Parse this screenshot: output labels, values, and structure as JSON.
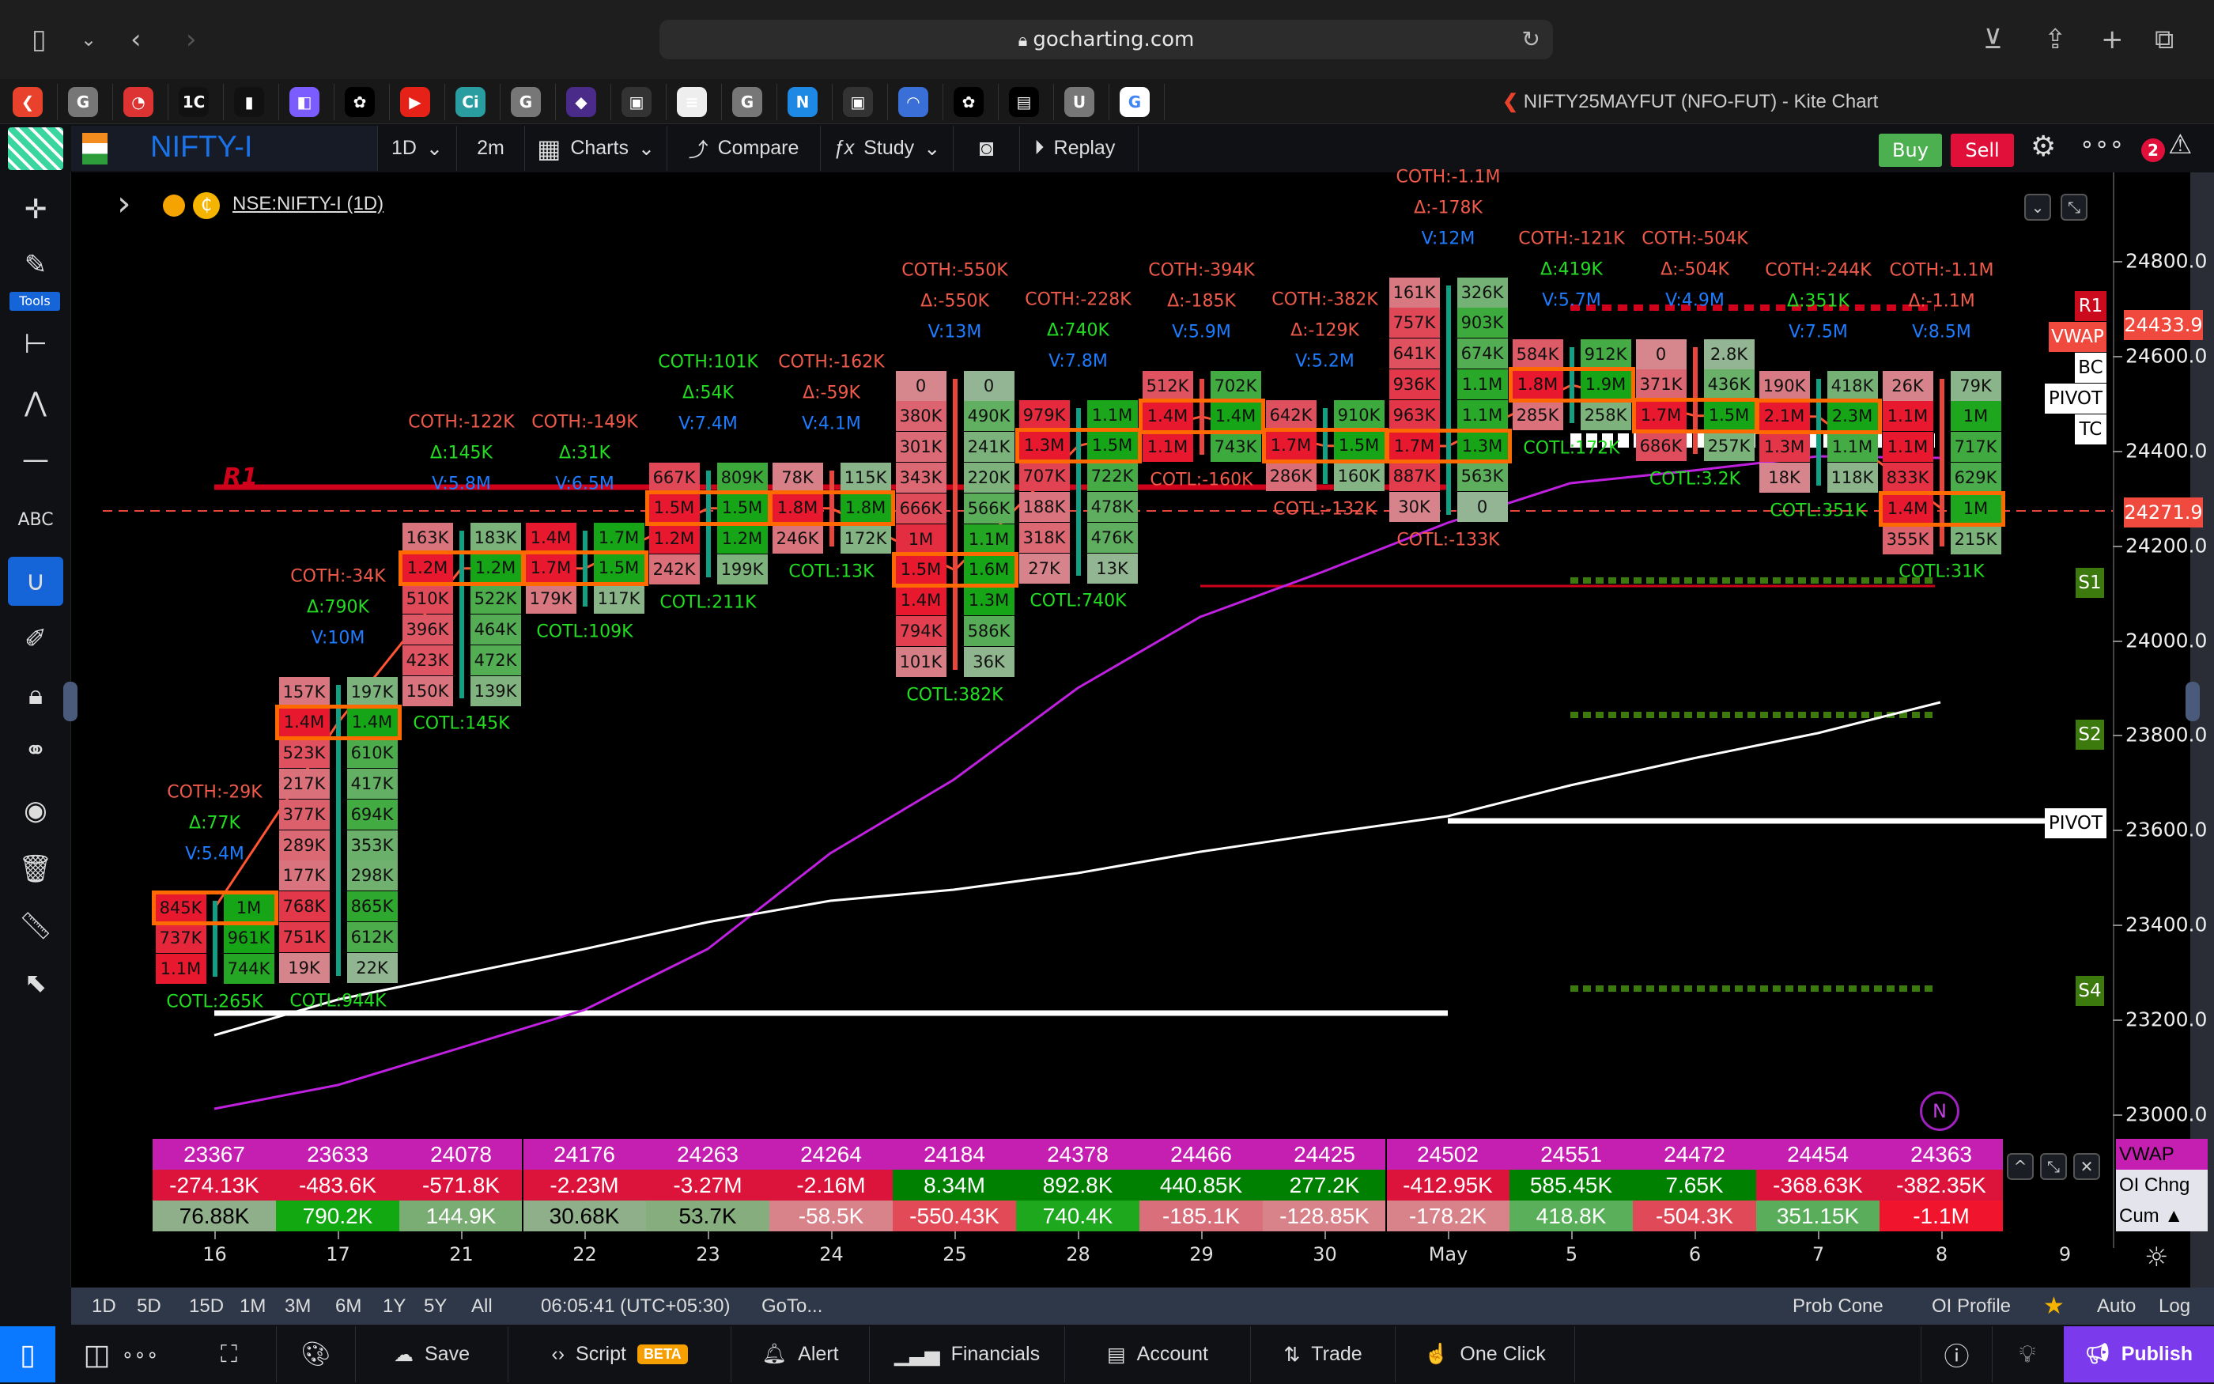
{
  "browser": {
    "url": "gocharting.com",
    "tab_title": "NIFTY25MAYFUT (NFO-FUT) - Kite Chart"
  },
  "tab_icons": [
    {
      "icon": "kite-icon",
      "glyph": "❮",
      "color": "#e8412c"
    },
    {
      "icon": "g-icon",
      "glyph": "G",
      "color": "#777"
    },
    {
      "icon": "speed-icon",
      "glyph": "◔",
      "color": "#d33"
    },
    {
      "icon": "1c-icon",
      "glyph": "1C",
      "color": "#111"
    },
    {
      "icon": "analytics-icon",
      "glyph": "▮",
      "color": "#111"
    },
    {
      "icon": "linear-icon",
      "glyph": "◧",
      "color": "#7b5cff"
    },
    {
      "icon": "openai-icon",
      "glyph": "✿",
      "color": "#000"
    },
    {
      "icon": "youtube-icon",
      "glyph": "▶",
      "color": "#e62117"
    },
    {
      "icon": "ci-icon",
      "glyph": "Ci",
      "color": "#2a9da0"
    },
    {
      "icon": "g-icon",
      "glyph": "G",
      "color": "#777"
    },
    {
      "icon": "art-icon",
      "glyph": "◆",
      "color": "#4a2b8a"
    },
    {
      "icon": "store-icon",
      "glyph": "▣",
      "color": "#333"
    },
    {
      "icon": "news-icon",
      "glyph": "≡",
      "color": "#eee"
    },
    {
      "icon": "g-icon",
      "glyph": "G",
      "color": "#777"
    },
    {
      "icon": "n-icon",
      "glyph": "N",
      "color": "#1e88e5"
    },
    {
      "icon": "store-icon",
      "glyph": "▣",
      "color": "#333"
    },
    {
      "icon": "rainbow-icon",
      "glyph": "◠",
      "color": "#3b6fd8"
    },
    {
      "icon": "openai-icon",
      "glyph": "✿",
      "color": "#000"
    },
    {
      "icon": "doc-icon",
      "glyph": "▤",
      "color": "#000"
    },
    {
      "icon": "u-icon",
      "glyph": "U",
      "color": "#777"
    },
    {
      "icon": "google-icon",
      "glyph": "G",
      "color": "#fff"
    }
  ],
  "toolbar": {
    "symbol": "NIFTY-I",
    "interval": "1D",
    "timeframe": "2m",
    "charts": "Charts",
    "compare": "Compare",
    "study": "Study",
    "replay": "Replay",
    "buy": "Buy",
    "sell": "Sell",
    "badge": "2"
  },
  "left_tools": {
    "tools_label": "Tools"
  },
  "chart_header": {
    "symbol": "NSE:NIFTY-I (1D)"
  },
  "colors": {
    "bid_strong": "#e8192f",
    "bid_weak": "#d6868d",
    "ask_strong": "#16a516",
    "ask_weak": "#93b593",
    "poc_border": "#ff6a00",
    "vwap": "#c41fb0",
    "oi_negative": "#dc143c",
    "oi_positive": "#008000",
    "volume_label": "#1e7cff",
    "publish": "#7c3aed"
  },
  "price_axis": {
    "ticks": [
      "24800.0",
      "24600.0",
      "24400.0",
      "24200.0",
      "24000.0",
      "23800.0",
      "23600.0",
      "23400.0",
      "23200.0",
      "23000.0"
    ],
    "vwap_price": "24433.9",
    "last_price": "24271.9"
  },
  "levels": {
    "r1": "R1",
    "vwap": "VWAP",
    "bc": "BC",
    "pivot": "PIVOT",
    "tc": "TC",
    "s1": "S1",
    "s2": "S2",
    "s4": "S4",
    "pivot2": "PIVOT",
    "r1_chart": "R1"
  },
  "candles": [
    {
      "date": "16",
      "dir": "up",
      "coth": "COTH:-29K",
      "delta": "Δ:77K",
      "vol": "V:5.4M",
      "cotl": "COTL:265K",
      "poc": 0,
      "bid": [
        "845K",
        "737K",
        "1.1M"
      ],
      "ask": [
        "1M",
        "961K",
        "744K"
      ]
    },
    {
      "date": "17",
      "dir": "up",
      "coth": "COTH:-34K",
      "delta": "Δ:790K",
      "vol": "V:10M",
      "cotl": "COTL:944K",
      "poc": 1,
      "bid": [
        "157K",
        "1.4M",
        "523K",
        "217K",
        "377K",
        "289K",
        "177K",
        "768K",
        "751K",
        "19K"
      ],
      "ask": [
        "197K",
        "1.4M",
        "610K",
        "417K",
        "694K",
        "353K",
        "298K",
        "865K",
        "612K",
        "22K"
      ]
    },
    {
      "date": "21",
      "dir": "up",
      "coth": "COTH:-122K",
      "delta": "Δ:145K",
      "vol": "V:5.8M",
      "cotl": "COTL:145K",
      "poc": 1,
      "bid": [
        "163K",
        "1.2M",
        "510K",
        "396K",
        "423K",
        "150K"
      ],
      "ask": [
        "183K",
        "1.2M",
        "522K",
        "464K",
        "472K",
        "139K"
      ]
    },
    {
      "date": "22",
      "dir": "up",
      "coth": "COTH:-149K",
      "delta": "Δ:31K",
      "vol": "V:6.5M",
      "cotl": "COTL:109K",
      "poc": 1,
      "bid": [
        "1.4M",
        "1.7M",
        "179K"
      ],
      "ask": [
        "1.7M",
        "1.5M",
        "117K"
      ]
    },
    {
      "date": "23",
      "dir": "up",
      "coth": "COTH:101K",
      "delta": "Δ:54K",
      "vol": "V:7.4M",
      "cotl": "COTL:211K",
      "poc": 1,
      "bid": [
        "667K",
        "1.5M",
        "1.2M",
        "242K"
      ],
      "ask": [
        "809K",
        "1.5M",
        "1.2M",
        "199K"
      ]
    },
    {
      "date": "24",
      "dir": "down",
      "coth": "COTH:-162K",
      "delta": "Δ:-59K",
      "vol": "V:4.1M",
      "cotl": "COTL:13K",
      "poc": 1,
      "bid": [
        "78K",
        "1.8M",
        "246K"
      ],
      "ask": [
        "115K",
        "1.8M",
        "172K"
      ]
    },
    {
      "date": "25",
      "dir": "down",
      "coth": "COTH:-550K",
      "delta": "Δ:-550K",
      "vol": "V:13M",
      "cotl": "COTL:382K",
      "poc": 6,
      "bid": [
        "0",
        "380K",
        "301K",
        "343K",
        "666K",
        "1M",
        "1.5M",
        "1.4M",
        "794K",
        "101K"
      ],
      "ask": [
        "0",
        "490K",
        "241K",
        "220K",
        "566K",
        "1.1M",
        "1.6M",
        "1.3M",
        "586K",
        "36K"
      ]
    },
    {
      "date": "28",
      "dir": "up",
      "coth": "COTH:-228K",
      "delta": "Δ:740K",
      "vol": "V:7.8M",
      "cotl": "COTL:740K",
      "poc": 1,
      "bid": [
        "979K",
        "1.3M",
        "707K",
        "188K",
        "318K",
        "27K"
      ],
      "ask": [
        "1.1M",
        "1.5M",
        "722K",
        "478K",
        "476K",
        "13K"
      ]
    },
    {
      "date": "29",
      "dir": "down",
      "coth": "COTH:-394K",
      "delta": "Δ:-185K",
      "vol": "V:5.9M",
      "cotl": "COTL:-160K",
      "poc": 1,
      "bid": [
        "512K",
        "1.4M",
        "1.1M"
      ],
      "ask": [
        "702K",
        "1.4M",
        "743K"
      ]
    },
    {
      "date": "30",
      "dir": "up",
      "coth": "COTH:-382K",
      "delta": "Δ:-129K",
      "vol": "V:5.2M",
      "cotl": "COTL:-132K",
      "poc": 1,
      "bid": [
        "642K",
        "1.7M",
        "286K"
      ],
      "ask": [
        "910K",
        "1.5M",
        "160K"
      ]
    },
    {
      "date": "May",
      "dir": "up",
      "coth": "COTH:-1.1M",
      "delta": "Δ:-178K",
      "vol": "V:12M",
      "cotl": "COTL:-133K",
      "poc": 5,
      "bid": [
        "161K",
        "757K",
        "641K",
        "936K",
        "963K",
        "1.7M",
        "887K",
        "30K"
      ],
      "ask": [
        "326K",
        "903K",
        "674K",
        "1.1M",
        "1.1M",
        "1.3M",
        "563K",
        "0"
      ]
    },
    {
      "date": "5",
      "dir": "up",
      "coth": "COTH:-121K",
      "delta": "Δ:419K",
      "vol": "V:5.7M",
      "cotl": "COTL:172K",
      "poc": 1,
      "bid": [
        "584K",
        "1.8M",
        "285K"
      ],
      "ask": [
        "912K",
        "1.9M",
        "258K"
      ]
    },
    {
      "date": "6",
      "dir": "down",
      "coth": "COTH:-504K",
      "delta": "Δ:-504K",
      "vol": "V:4.9M",
      "cotl": "COTL:3.2K",
      "poc": 2,
      "bid": [
        "0",
        "371K",
        "1.7M",
        "686K"
      ],
      "ask": [
        "2.8K",
        "436K",
        "1.5M",
        "257K"
      ]
    },
    {
      "date": "7",
      "dir": "up",
      "coth": "COTH:-244K",
      "delta": "Δ:351K",
      "vol": "V:7.5M",
      "cotl": "COTL:351K",
      "poc": 1,
      "bid": [
        "190K",
        "2.1M",
        "1.3M",
        "18K"
      ],
      "ask": [
        "418K",
        "2.3M",
        "1.1M",
        "118K"
      ]
    },
    {
      "date": "8",
      "dir": "down",
      "coth": "COTH:-1.1M",
      "delta": "Δ:-1.1M",
      "vol": "V:8.5M",
      "cotl": "COTL:31K",
      "poc": 4,
      "bid": [
        "26K",
        "1.1M",
        "1.1M",
        "833K",
        "1.4M",
        "355K"
      ],
      "ask": [
        "79K",
        "1M",
        "717K",
        "629K",
        "1M",
        "215K"
      ]
    }
  ],
  "x_axis_extra": "9",
  "table": {
    "labels": [
      "VWAP",
      "OI Chng",
      "Cum ▲"
    ],
    "vwap": [
      "23367",
      "23633",
      "24078",
      "24176",
      "24263",
      "24264",
      "24184",
      "24378",
      "24466",
      "24425",
      "24502",
      "24551",
      "24472",
      "24454",
      "24363"
    ],
    "oi_chng": [
      "-274.13K",
      "-483.6K",
      "-571.8K",
      "-2.23M",
      "-3.27M",
      "-2.16M",
      "8.34M",
      "892.8K",
      "440.85K",
      "277.2K",
      "-412.95K",
      "585.45K",
      "7.65K",
      "-368.63K",
      "-382.35K"
    ],
    "cum": [
      "76.88K",
      "790.2K",
      "144.9K",
      "30.68K",
      "53.7K",
      "-58.5K",
      "-550.43K",
      "740.4K",
      "-185.1K",
      "-128.85K",
      "-178.2K",
      "418.8K",
      "-504.3K",
      "351.15K",
      "-1.1M"
    ],
    "cum_colors": [
      "#8fae8a",
      "#12a812",
      "#7aad74",
      "#8fae8a",
      "#86ad7e",
      "#d8828a",
      "#e34a58",
      "#1ea81e",
      "#d86f7a",
      "#d8828a",
      "#d8828a",
      "#5ab05a",
      "#e04a58",
      "#5aad5a",
      "#f0142c"
    ]
  },
  "bottom_bar": {
    "ranges": [
      "1D",
      "5D",
      "15D",
      "1M",
      "3M",
      "6M",
      "1Y",
      "5Y",
      "All"
    ],
    "time": "06:05:41 (UTC+05:30)",
    "goto": "GoTo...",
    "prob_cone": "Prob Cone",
    "oi_profile": "OI Profile",
    "auto": "Auto",
    "log": "Log"
  },
  "footer": {
    "save": "Save",
    "script": "Script",
    "beta": "BETA",
    "alert": "Alert",
    "financials": "Financials",
    "account": "Account",
    "trade": "Trade",
    "one_click": "One Click",
    "publish": "Publish"
  }
}
